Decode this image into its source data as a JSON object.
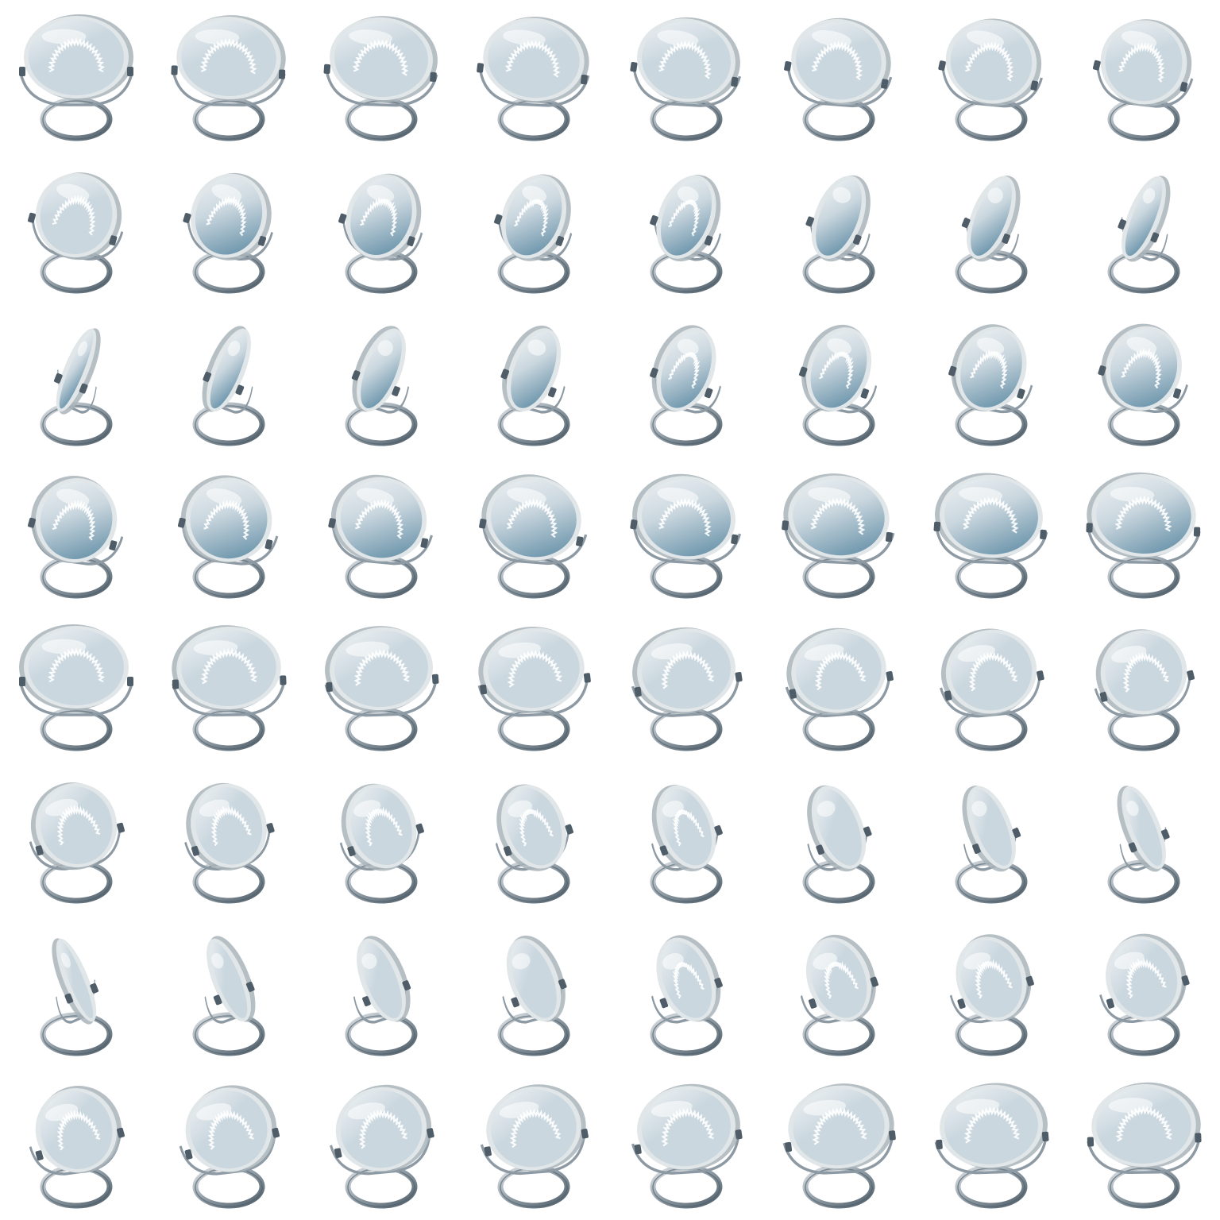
{
  "sheet": {
    "grid": {
      "rows": 8,
      "cols": 8
    },
    "frame_count": 64,
    "subject": "lens-on-ring-stand",
    "background_color": "#ffffff",
    "colors": {
      "lens_face_light": "#f1f4f6",
      "lens_face_mid": "#c9d6de",
      "lens_face_dark": "#6f97ad",
      "lens_rim": "#e1e6e9",
      "lens_rim_shadow": "#a9b4ba",
      "metal_dark": "#4f5d68",
      "metal_mid": "#8d9aa4",
      "metal_light": "#dde2e6",
      "ruffle": "#ffffff"
    }
  }
}
